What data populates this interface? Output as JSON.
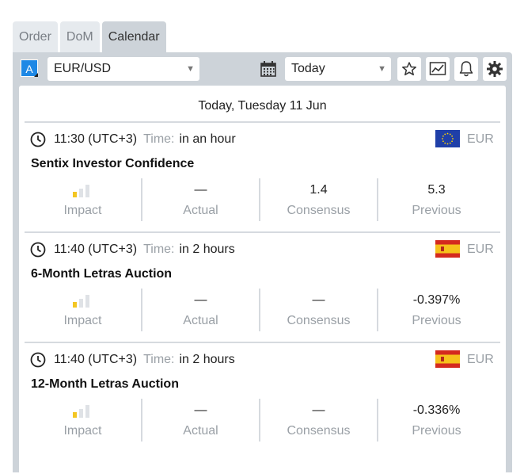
{
  "tabs": [
    "Order",
    "DoM",
    "Calendar"
  ],
  "active_tab": "Calendar",
  "toolbar": {
    "account_badge": "A",
    "instrument": "EUR/USD",
    "period": "Today"
  },
  "date_header": "Today, Tuesday 11 Jun",
  "labels": {
    "time_label": "Time:",
    "impact": "Impact",
    "actual": "Actual",
    "consensus": "Consensus",
    "previous": "Previous"
  },
  "events": [
    {
      "time": "11:30 (UTC+3)",
      "relative": "in an hour",
      "flag": "eu",
      "currency": "EUR",
      "title": "Sentix Investor Confidence",
      "impact_level": 1,
      "actual": "—",
      "consensus": "1.4",
      "previous": "5.3"
    },
    {
      "time": "11:40 (UTC+3)",
      "relative": "in 2 hours",
      "flag": "es",
      "currency": "EUR",
      "title": "6-Month Letras Auction",
      "impact_level": 1,
      "actual": "—",
      "consensus": "—",
      "previous": "-0.397%"
    },
    {
      "time": "11:40 (UTC+3)",
      "relative": "in 2 hours",
      "flag": "es",
      "currency": "EUR",
      "title": "12-Month Letras Auction",
      "impact_level": 1,
      "actual": "—",
      "consensus": "—",
      "previous": "-0.336%"
    }
  ],
  "colors": {
    "impact_on": "#f3c623",
    "impact_off": "#dfe2e6",
    "accent_blue": "#1e88e5"
  }
}
